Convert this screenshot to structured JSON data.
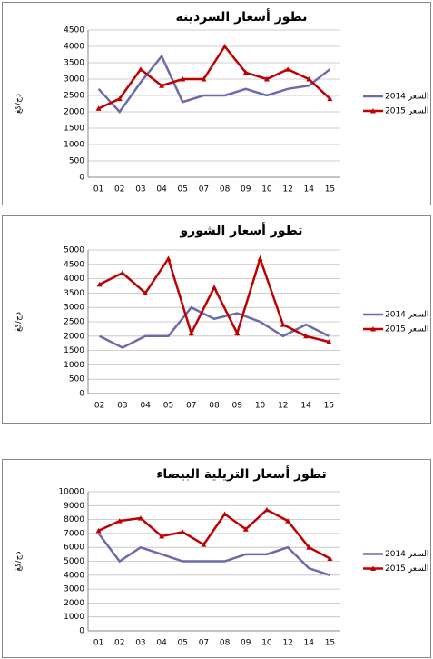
{
  "chart_data": [
    {
      "type": "line",
      "title": "تطور أسعار السردينة",
      "y_label": "دج/كغ",
      "categories": [
        "01",
        "02",
        "03",
        "04",
        "05",
        "07",
        "08",
        "09",
        "10",
        "12",
        "14",
        "15"
      ],
      "series": [
        {
          "name": "السعر 2014",
          "color": "#6b6bab",
          "marker": "none",
          "values": [
            2700,
            2000,
            2900,
            3700,
            2300,
            2500,
            2500,
            2700,
            2500,
            2700,
            2800,
            3300
          ]
        },
        {
          "name": "السعر 2015",
          "color": "#c00000",
          "marker": "triangle",
          "values": [
            2100,
            2400,
            3300,
            2800,
            3000,
            3000,
            4000,
            3200,
            3000,
            3300,
            3000,
            2400
          ]
        }
      ],
      "ylim": [
        0,
        4500
      ],
      "yticks": [
        0,
        500,
        1000,
        1500,
        2000,
        2500,
        3000,
        3500,
        4000,
        4500
      ],
      "grid": true,
      "legend": "right"
    },
    {
      "type": "line",
      "title": "تطور أسعار الشورو",
      "y_label": "دج/كغ",
      "categories": [
        "02",
        "03",
        "04",
        "05",
        "07",
        "08",
        "09",
        "10",
        "12",
        "14",
        "15"
      ],
      "series": [
        {
          "name": "السعر 2014",
          "color": "#6b6bab",
          "marker": "none",
          "values": [
            2000,
            1600,
            2000,
            2000,
            3000,
            2600,
            2800,
            2500,
            2000,
            2400,
            2000
          ]
        },
        {
          "name": "السعر 2015",
          "color": "#c00000",
          "marker": "triangle",
          "values": [
            3800,
            4200,
            3500,
            4700,
            2100,
            3700,
            2100,
            4700,
            2400,
            2000,
            1800
          ]
        }
      ],
      "ylim": [
        0,
        5000
      ],
      "yticks": [
        0,
        500,
        1000,
        1500,
        2000,
        2500,
        3000,
        3500,
        4000,
        4500,
        5000
      ],
      "grid": true,
      "legend": "right"
    },
    {
      "type": "line",
      "title": "تطور أسعار التريلية البيضاء",
      "y_label": "دج/كغ",
      "categories": [
        "01",
        "02",
        "03",
        "04",
        "05",
        "07",
        "08",
        "09",
        "10",
        "12",
        "14",
        "15"
      ],
      "series": [
        {
          "name": "السعر 2014",
          "color": "#6b6bab",
          "marker": "none",
          "values": [
            7000,
            5000,
            6000,
            5500,
            5000,
            5000,
            5000,
            5500,
            5500,
            6000,
            4500,
            4000
          ]
        },
        {
          "name": "السعر 2015",
          "color": "#c00000",
          "marker": "triangle",
          "values": [
            7200,
            7900,
            8100,
            6800,
            7100,
            6200,
            8400,
            7300,
            8700,
            7900,
            6000,
            5200
          ]
        }
      ],
      "ylim": [
        0,
        10000
      ],
      "yticks": [
        0,
        1000,
        2000,
        3000,
        4000,
        5000,
        6000,
        7000,
        8000,
        9000,
        10000
      ],
      "grid": true,
      "legend": "right"
    }
  ]
}
